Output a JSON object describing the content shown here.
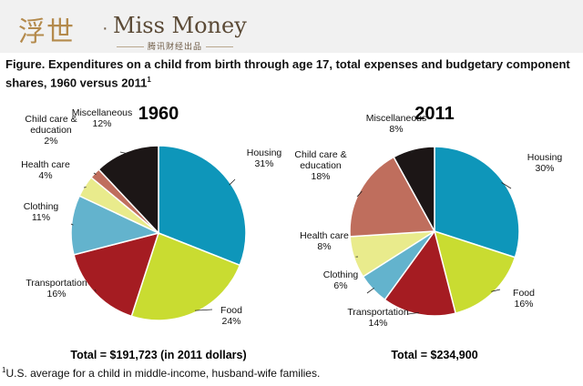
{
  "header": {
    "logo_cn": "浮世",
    "logo_sep": "·",
    "logo_en": "Miss Money",
    "logo_sub": "腾讯财经出品"
  },
  "figure": {
    "title": "Figure. Expenditures on a child from birth through age 17, total expenses and budgetary component shares, 1960 versus 2011",
    "title_sup": "1",
    "footnote_mark": "1",
    "footnote": "U.S. average for a child in middle-income, husband-wife families."
  },
  "colors": {
    "Housing": "#0e96ba",
    "Food": "#c9dc31",
    "Transportation": "#a51c22",
    "Clothing": "#63b3cd",
    "Health care": "#e9eb8c",
    "Child care & education": "#bf6e5d",
    "Miscellaneous": "#1c1616"
  },
  "chart_data": [
    {
      "type": "pie",
      "title": "1960",
      "total": "Total = $191,723 (in 2011 dollars)",
      "slices": [
        {
          "name": "Housing",
          "value": 31,
          "label": "31%"
        },
        {
          "name": "Food",
          "value": 24,
          "label": "24%"
        },
        {
          "name": "Transportation",
          "value": 16,
          "label": "16%"
        },
        {
          "name": "Clothing",
          "value": 11,
          "label": "11%"
        },
        {
          "name": "Health care",
          "value": 4,
          "label": "4%"
        },
        {
          "name": "Child care & education",
          "value": 2,
          "label": "2%"
        },
        {
          "name": "Miscellaneous",
          "value": 12,
          "label": "12%"
        }
      ]
    },
    {
      "type": "pie",
      "title": "2011",
      "total": "Total = $234,900",
      "slices": [
        {
          "name": "Housing",
          "value": 30,
          "label": "30%"
        },
        {
          "name": "Food",
          "value": 16,
          "label": "16%"
        },
        {
          "name": "Transportation",
          "value": 14,
          "label": "14%"
        },
        {
          "name": "Clothing",
          "value": 6,
          "label": "6%"
        },
        {
          "name": "Health care",
          "value": 8,
          "label": "8%"
        },
        {
          "name": "Child care & education",
          "value": 18,
          "label": "18%"
        },
        {
          "name": "Miscellaneous",
          "value": 8,
          "label": "8%"
        }
      ]
    }
  ]
}
